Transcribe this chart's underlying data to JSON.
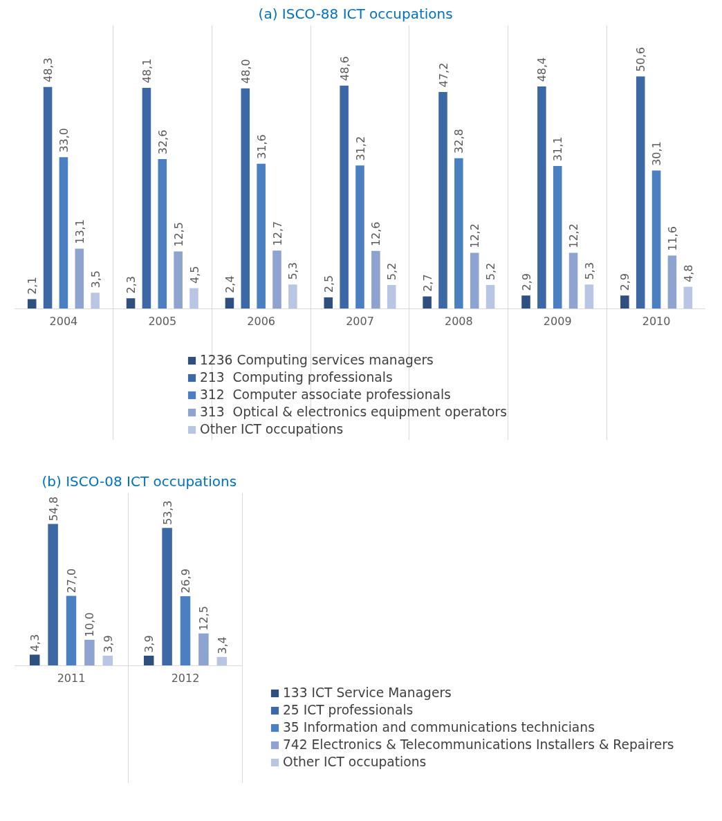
{
  "chart_data": [
    {
      "type": "bar",
      "title": "(a)   ISCO-88 ICT occupations",
      "categories": [
        "2004",
        "2005",
        "2006",
        "2007",
        "2008",
        "2009",
        "2010"
      ],
      "grid": "x",
      "legend": "bottom",
      "series": [
        {
          "name": "1236 Computing services managers",
          "color": "#2f4f7f",
          "values": [
            2.1,
            2.3,
            2.4,
            2.5,
            2.7,
            2.9,
            2.9
          ],
          "value_labels": [
            "2,1",
            "2,3",
            "2,4",
            "2,5",
            "2,7",
            "2,9",
            "2,9"
          ]
        },
        {
          "name": "213  Computing professionals",
          "color": "#3d68a6",
          "values": [
            48.3,
            48.1,
            48.0,
            48.6,
            47.2,
            48.4,
            50.6
          ],
          "value_labels": [
            "48,3",
            "48,1",
            "48,0",
            "48,6",
            "47,2",
            "48,4",
            "50,6"
          ]
        },
        {
          "name": "312  Computer associate professionals",
          "color": "#4a7fc1",
          "values": [
            33.0,
            32.6,
            31.6,
            31.2,
            32.8,
            31.1,
            30.1
          ],
          "value_labels": [
            "33,0",
            "32,6",
            "31,6",
            "31,2",
            "32,8",
            "31,1",
            "30,1"
          ]
        },
        {
          "name": "313  Optical & electronics equipment operators",
          "color": "#8ea3cf",
          "values": [
            13.1,
            12.5,
            12.7,
            12.6,
            12.2,
            12.2,
            11.6
          ],
          "value_labels": [
            "13,1",
            "12,5",
            "12,7",
            "12,6",
            "12,2",
            "12,2",
            "11,6"
          ]
        },
        {
          "name": "Other ICT occupations",
          "color": "#b8c5e3",
          "values": [
            3.5,
            4.5,
            5.3,
            5.2,
            5.2,
            5.3,
            4.8
          ],
          "value_labels": [
            "3,5",
            "4,5",
            "5,3",
            "5,2",
            "5,2",
            "5,3",
            "4,8"
          ]
        }
      ]
    },
    {
      "type": "bar",
      "title": "(b)   ISCO-08 ICT occupations",
      "categories": [
        "2011",
        "2012"
      ],
      "grid": "x",
      "legend": "right",
      "series": [
        {
          "name": "133 ICT Service Managers",
          "color": "#2f4f7f",
          "values": [
            4.3,
            3.9
          ],
          "value_labels": [
            "4,3",
            "3,9"
          ]
        },
        {
          "name": "25 ICT professionals",
          "color": "#3d68a6",
          "values": [
            54.8,
            53.3
          ],
          "value_labels": [
            "54,8",
            "53,3"
          ]
        },
        {
          "name": "35 Information and communications technicians",
          "color": "#4a7fc1",
          "values": [
            27.0,
            26.9
          ],
          "value_labels": [
            "27,0",
            "26,9"
          ]
        },
        {
          "name": "742 Electronics & Telecommunications Installers & Repairers",
          "color": "#8ea3cf",
          "values": [
            10.0,
            12.5
          ],
          "value_labels": [
            "10,0",
            "12,5"
          ]
        },
        {
          "name": "Other ICT occupations",
          "color": "#b8c5e3",
          "values": [
            3.9,
            3.4
          ],
          "value_labels": [
            "3,9",
            "3,4"
          ]
        }
      ]
    }
  ]
}
